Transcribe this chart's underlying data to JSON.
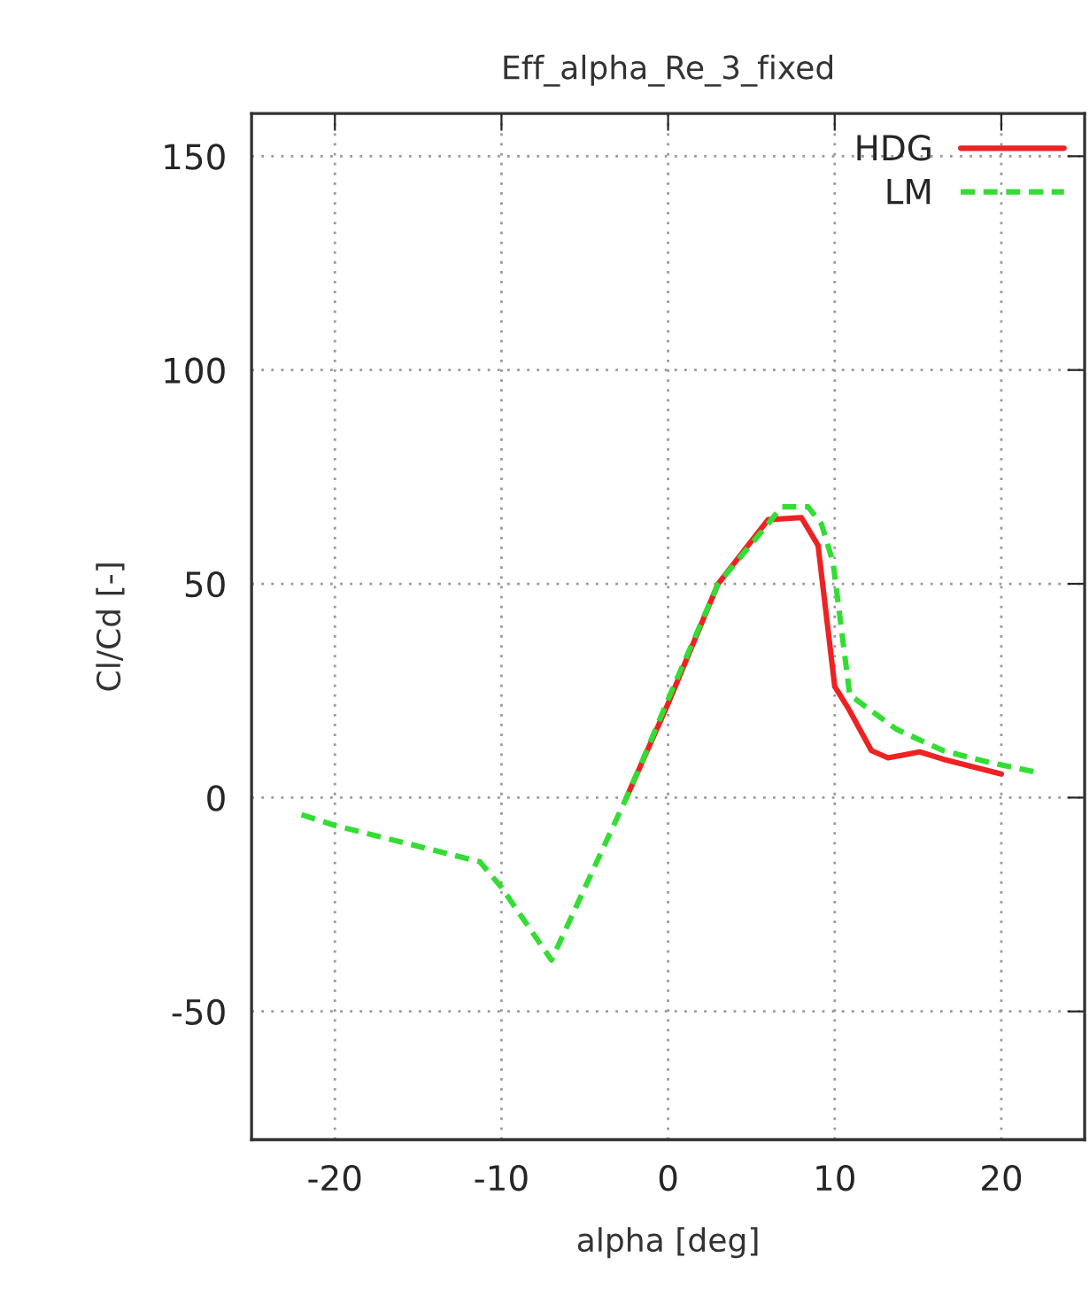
{
  "chart_data": {
    "type": "line",
    "title": "Eff_alpha_Re_3_fixed",
    "xlabel": "alpha [deg]",
    "ylabel": "Cl/Cd [-]",
    "xlim": [
      -25,
      25
    ],
    "xticks": [
      -20,
      -10,
      0,
      10,
      20
    ],
    "ylim": [
      -80,
      160
    ],
    "yticks": [
      -50,
      0,
      50,
      100,
      150
    ],
    "grid": true,
    "legend": "top right",
    "series": [
      {
        "name": "HDG",
        "color": "#ee2222",
        "line_style": "solid",
        "x": [
          -2.5,
          0,
          3,
          6,
          8,
          9,
          10,
          10.8,
          12.2,
          13.2,
          15.1,
          16.5,
          20
        ],
        "values": [
          0,
          22,
          50,
          65,
          65.5,
          59,
          26,
          21,
          11,
          9.3,
          10.7,
          9,
          5.5
        ]
      },
      {
        "name": "LM",
        "color": "#33dd33",
        "line_style": "dashed",
        "x": [
          -22,
          -20,
          -11.3,
          -10,
          -7,
          -2.5,
          -1.5,
          0,
          3,
          6,
          6.8,
          8.4,
          9.2,
          9.9,
          10.9,
          13.7,
          16.5,
          19.2,
          22
        ],
        "values": [
          -4,
          -6.5,
          -15,
          -21,
          -38,
          0,
          9,
          23,
          50,
          64,
          68,
          68,
          64,
          55,
          24,
          16,
          11,
          8.3,
          6
        ]
      }
    ]
  }
}
